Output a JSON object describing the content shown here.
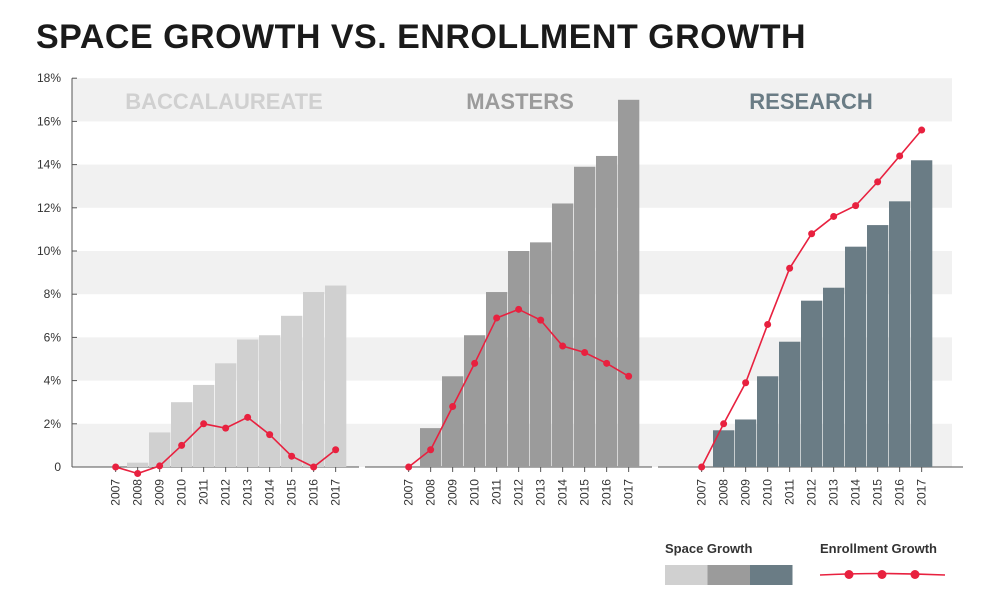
{
  "chart_data": {
    "type": "bar",
    "title": "SPACE GROWTH VS. ENROLLMENT GROWTH",
    "ylim": [
      0,
      18
    ],
    "yticks": [
      {
        "value": 0,
        "label": "0"
      },
      {
        "value": 2,
        "label": "2%"
      },
      {
        "value": 4,
        "label": "4%"
      },
      {
        "value": 6,
        "label": "6%"
      },
      {
        "value": 8,
        "label": "8%"
      },
      {
        "value": 10,
        "label": "10%"
      },
      {
        "value": 12,
        "label": "12%"
      },
      {
        "value": 14,
        "label": "14%"
      },
      {
        "value": 16,
        "label": "16%"
      },
      {
        "value": 18,
        "label": "18%"
      }
    ],
    "grid": "alternating-bands",
    "categories": [
      "2007",
      "2008",
      "2009",
      "2010",
      "2011",
      "2012",
      "2013",
      "2014",
      "2015",
      "2016",
      "2017"
    ],
    "panels": [
      {
        "name": "BACCALAUREATE",
        "color": "#d0d0d0",
        "space_growth": [
          0,
          0.2,
          1.6,
          3.0,
          3.8,
          4.8,
          5.9,
          6.1,
          7.0,
          8.1,
          8.4
        ],
        "enrollment_growth": [
          0,
          -0.3,
          0.05,
          1.0,
          2.0,
          1.8,
          2.3,
          1.5,
          0.5,
          0.0,
          0.8
        ]
      },
      {
        "name": "MASTERS",
        "color": "#9b9b9b",
        "space_growth": [
          0,
          1.8,
          4.2,
          6.1,
          8.1,
          10.0,
          10.4,
          12.2,
          13.9,
          14.4,
          17.0
        ],
        "enrollment_growth": [
          0,
          0.8,
          2.8,
          4.8,
          6.9,
          7.3,
          6.8,
          5.6,
          5.3,
          4.8,
          4.2
        ]
      },
      {
        "name": "RESEARCH",
        "color": "#6a7c85",
        "space_growth": [
          0,
          1.7,
          2.2,
          4.2,
          5.8,
          7.7,
          8.3,
          10.2,
          11.2,
          12.3,
          14.2
        ],
        "enrollment_growth": [
          0,
          2.0,
          3.9,
          6.6,
          9.2,
          10.8,
          11.6,
          12.1,
          13.2,
          14.4,
          15.6
        ]
      }
    ],
    "line_color": "#e8213f",
    "legend": {
      "space_label": "Space Growth",
      "enrollment_label": "Enrollment Growth",
      "placement": "bottom-right"
    }
  }
}
